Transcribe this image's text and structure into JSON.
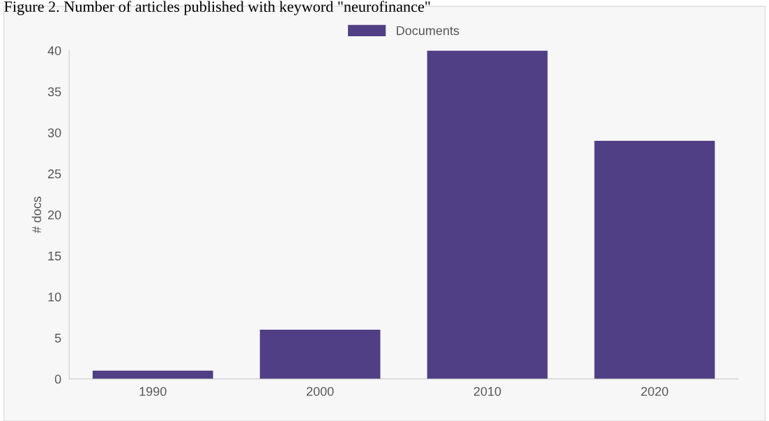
{
  "chart_data": {
    "type": "bar",
    "title": "Figure 2. Number of articles published with keyword \"neurofinance\"",
    "ylabel": "# docs",
    "categories": [
      "1990",
      "2000",
      "2010",
      "2020"
    ],
    "series": [
      {
        "name": "Documents",
        "color": "#513f85",
        "values": [
          1,
          6,
          40,
          29
        ]
      }
    ],
    "ylim": [
      0,
      40
    ],
    "yticks": [
      0,
      5,
      10,
      15,
      20,
      25,
      30,
      35,
      40
    ],
    "grid": false,
    "legend": "top"
  }
}
